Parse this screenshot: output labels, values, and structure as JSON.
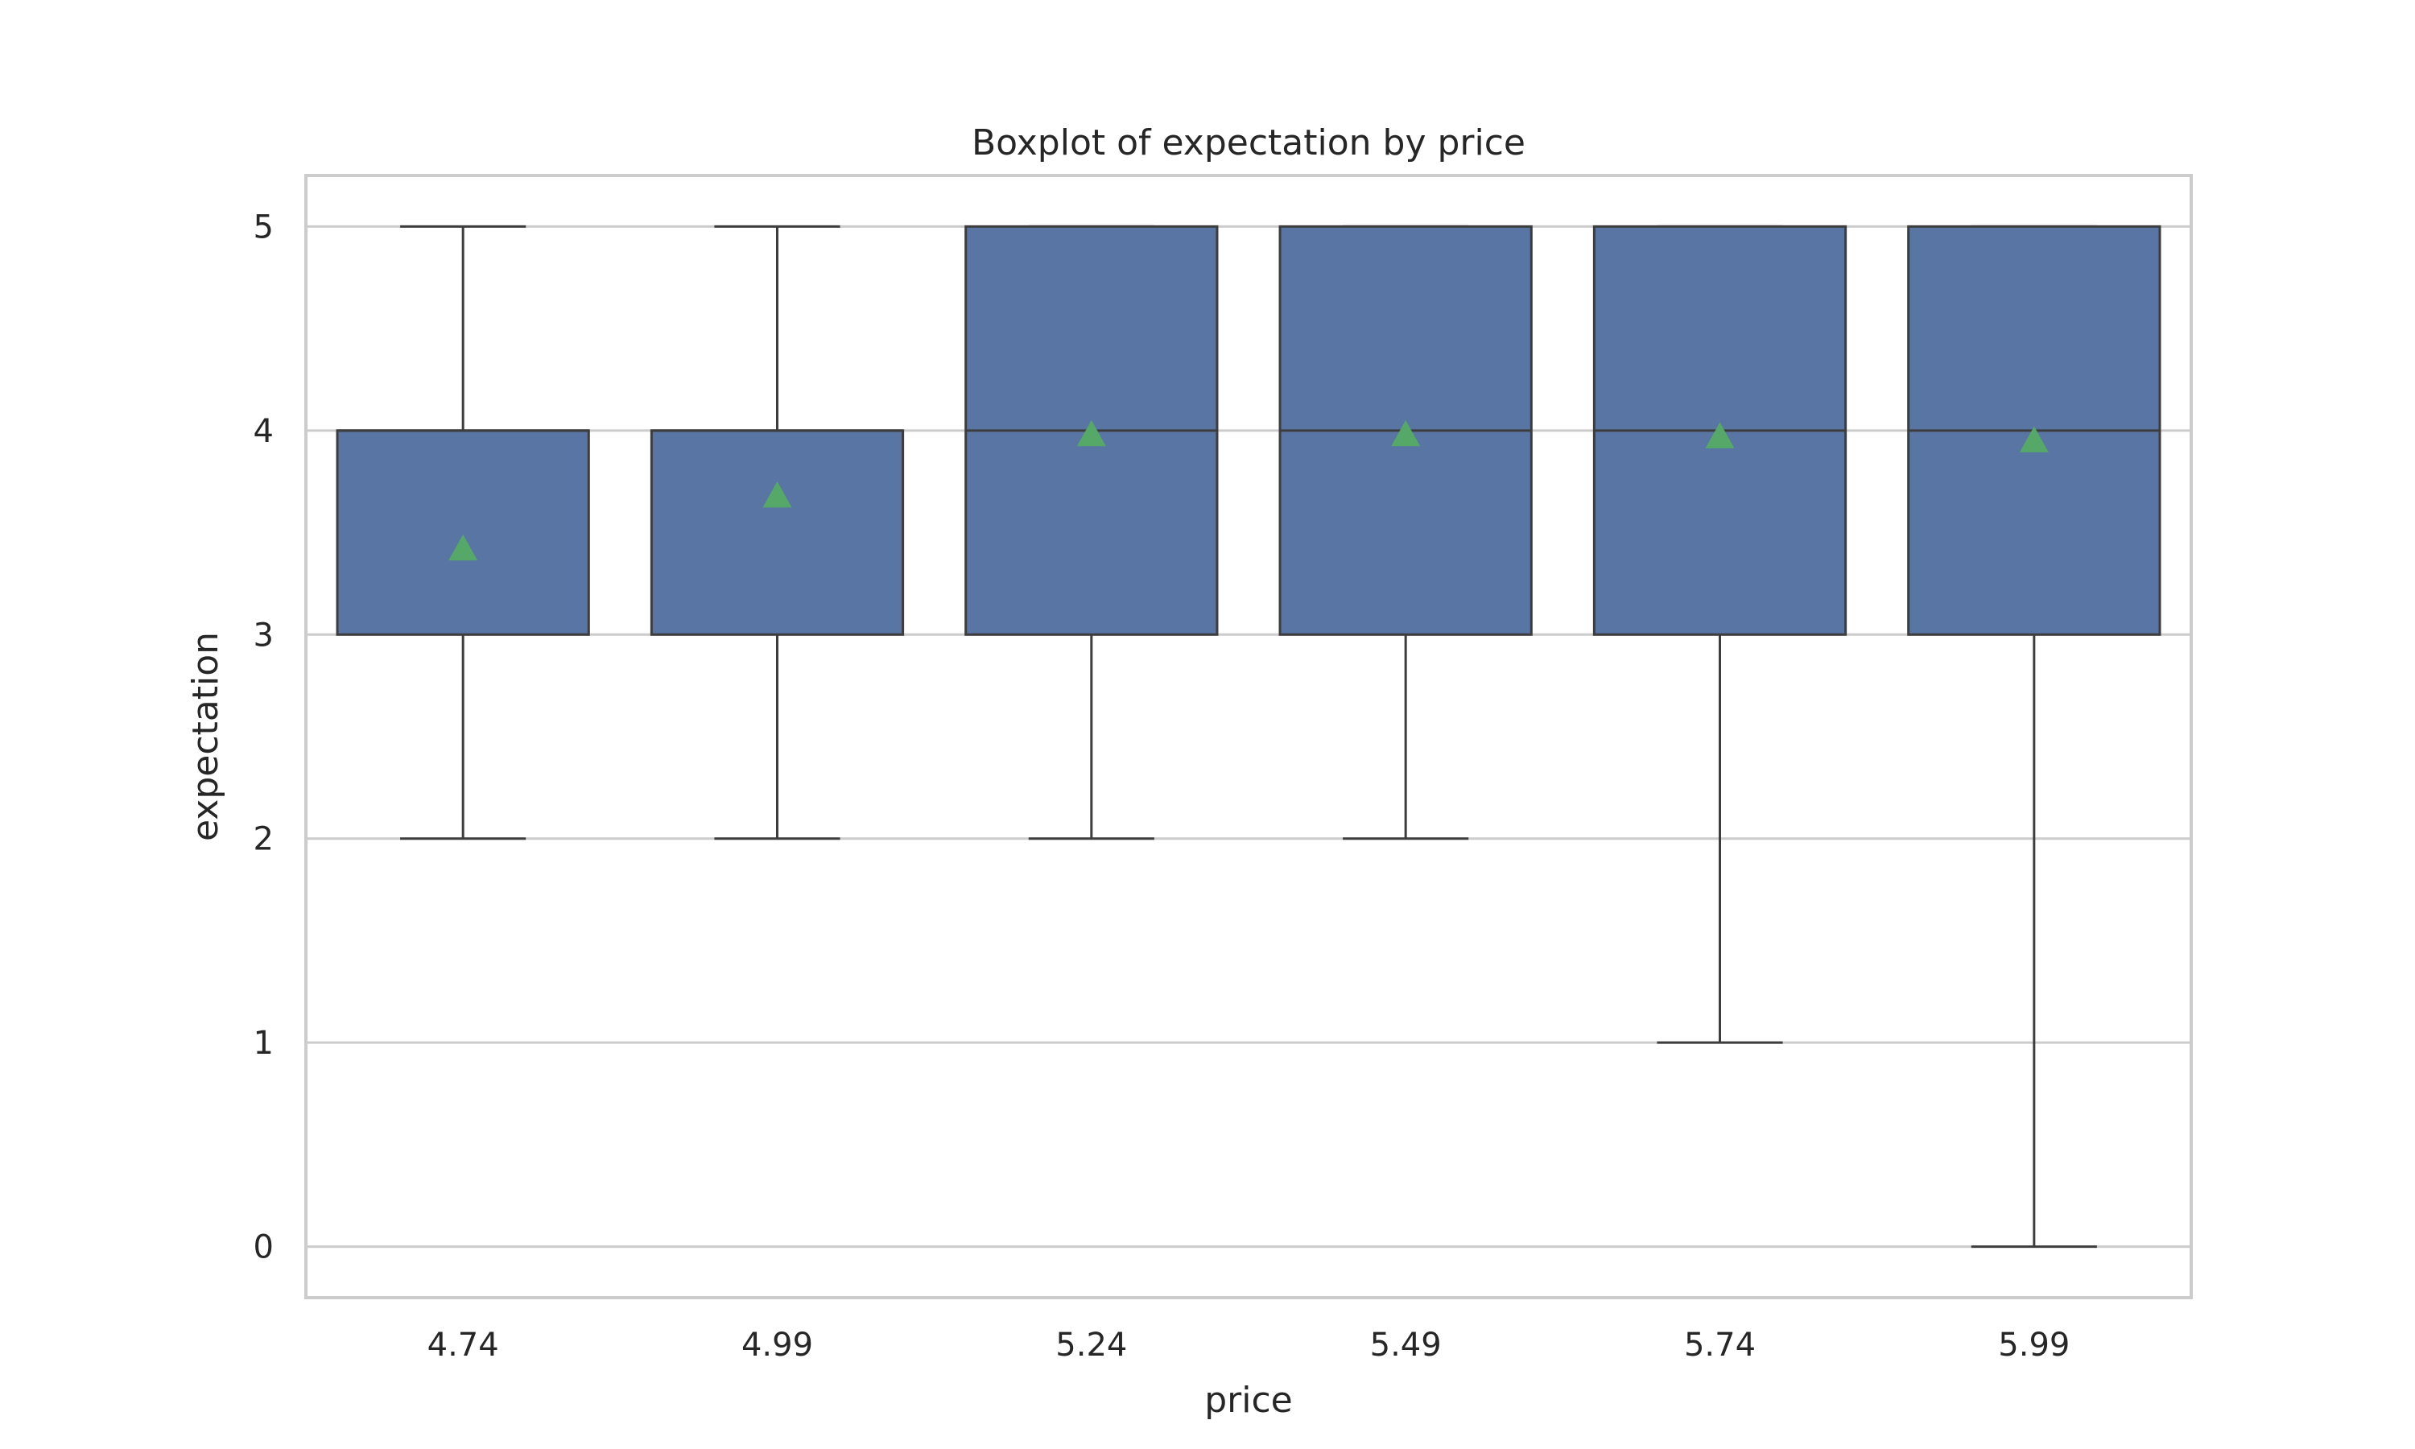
{
  "chart_data": {
    "type": "boxplot",
    "title": "Boxplot of expectation by price",
    "xlabel": "price",
    "ylabel": "expectation",
    "categories": [
      "4.74",
      "4.99",
      "5.24",
      "5.49",
      "5.74",
      "5.99"
    ],
    "yticks": [
      "0",
      "1",
      "2",
      "3",
      "4",
      "5"
    ],
    "ylim": [
      -0.25,
      5.25
    ],
    "grid": true,
    "boxes": [
      {
        "category": "4.74",
        "whisker_low": 2,
        "q1": 3,
        "median": 4,
        "q3": 4,
        "whisker_high": 5,
        "mean": 3.42
      },
      {
        "category": "4.99",
        "whisker_low": 2,
        "q1": 3,
        "median": 4,
        "q3": 4,
        "whisker_high": 5,
        "mean": 3.68
      },
      {
        "category": "5.24",
        "whisker_low": 2,
        "q1": 3,
        "median": 4,
        "q3": 5,
        "whisker_high": 5,
        "mean": 3.98
      },
      {
        "category": "5.49",
        "whisker_low": 2,
        "q1": 3,
        "median": 4,
        "q3": 5,
        "whisker_high": 5,
        "mean": 3.98
      },
      {
        "category": "5.74",
        "whisker_low": 1,
        "q1": 3,
        "median": 4,
        "q3": 5,
        "whisker_high": 5,
        "mean": 3.97
      },
      {
        "category": "5.99",
        "whisker_low": 0,
        "q1": 3,
        "median": 4,
        "q3": 5,
        "whisker_high": 5,
        "mean": 3.95
      }
    ],
    "colors": {
      "box_fill": "#5875a4",
      "line": "#3d3d3d",
      "mean_marker": "#55a868",
      "grid": "#cccccc",
      "frame": "#cccccc"
    }
  }
}
